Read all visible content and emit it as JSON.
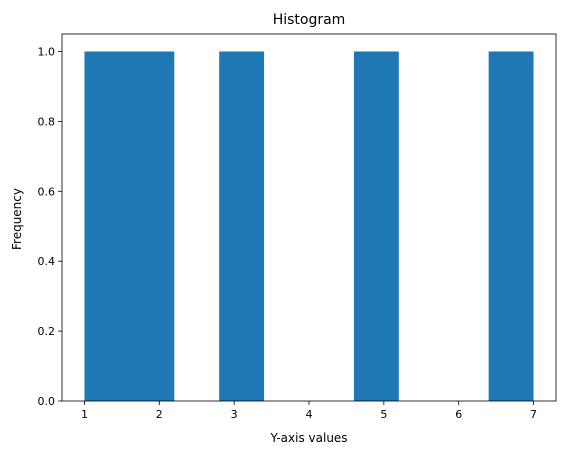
{
  "chart_data": {
    "type": "bar",
    "title": "Histogram",
    "xlabel": "Y-axis values",
    "ylabel": "Frequency",
    "xlim": [
      0.7,
      7.3
    ],
    "ylim": [
      0.0,
      1.05
    ],
    "xticks": [
      "1",
      "2",
      "3",
      "4",
      "5",
      "6",
      "7"
    ],
    "yticks": [
      "0.0",
      "0.2",
      "0.4",
      "0.6",
      "0.8",
      "1.0"
    ],
    "bins": [
      {
        "start": 1.0,
        "end": 2.2,
        "count": 1
      },
      {
        "start": 2.8,
        "end": 3.4,
        "count": 1
      },
      {
        "start": 4.6,
        "end": 5.2,
        "count": 1
      },
      {
        "start": 6.4,
        "end": 7.0,
        "count": 1
      }
    ],
    "bar_color": "#1f77b4",
    "grid": false,
    "legend": "none"
  }
}
